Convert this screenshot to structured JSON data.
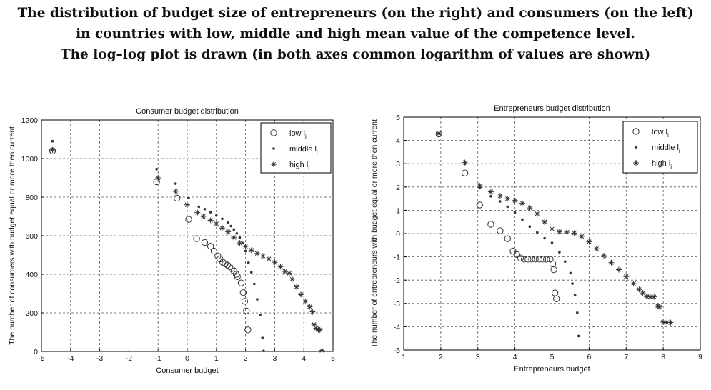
{
  "figure_title": [
    "The distribution of budget size of entrepreneurs (on the right) and consumers (on the left)",
    "in countries with low, middle and high mean value of the competence level.",
    "The log–log plot is drawn (in both axes common logarithm of values are shown)"
  ],
  "chart_data": [
    {
      "type": "scatter",
      "title": "Consumer budget distribution",
      "xlabel": "Consumer budget",
      "ylabel": "The number of consumers with budget equal or more then current",
      "xlim": [
        -5,
        5
      ],
      "ylim": [
        0,
        1200
      ],
      "xticks": [
        -5,
        -4,
        -3,
        -2,
        -1,
        0,
        1,
        2,
        3,
        4,
        5
      ],
      "yticks": [
        0,
        200,
        400,
        600,
        800,
        1000,
        1200
      ],
      "grid": true,
      "legend_position": "top-right",
      "series": [
        {
          "name": "low",
          "marker": "circle",
          "x": [
            -4.62,
            -1.05,
            -0.35,
            0.05,
            0.32,
            0.6,
            0.8,
            0.92,
            1.05,
            1.12,
            1.22,
            1.3,
            1.38,
            1.45,
            1.52,
            1.6,
            1.68,
            1.72,
            1.85,
            1.92,
            1.97,
            2.03,
            2.08
          ],
          "y": [
            1040,
            880,
            795,
            685,
            585,
            565,
            545,
            520,
            495,
            480,
            462,
            455,
            448,
            440,
            430,
            418,
            400,
            388,
            355,
            305,
            260,
            210,
            112
          ]
        },
        {
          "name": "middle",
          "marker": "dot",
          "x": [
            -4.62,
            -1.05,
            -0.4,
            0.05,
            0.4,
            0.6,
            0.8,
            1.0,
            1.2,
            1.4,
            1.5,
            1.6,
            1.7,
            1.8,
            1.9,
            2.0,
            2.1,
            2.2,
            2.3,
            2.4,
            2.5,
            2.58,
            2.62
          ],
          "y": [
            1090,
            945,
            870,
            795,
            750,
            738,
            722,
            705,
            688,
            668,
            650,
            632,
            612,
            590,
            562,
            520,
            460,
            410,
            350,
            270,
            190,
            70,
            3
          ]
        },
        {
          "name": "high",
          "marker": "star",
          "x": [
            -4.62,
            -1.0,
            -0.4,
            0.0,
            0.35,
            0.55,
            0.8,
            1.0,
            1.2,
            1.4,
            1.6,
            1.8,
            2.0,
            2.2,
            2.4,
            2.6,
            2.8,
            3.0,
            3.2,
            3.35,
            3.5,
            3.6,
            3.75,
            3.9,
            4.05,
            4.2,
            4.3,
            4.35,
            4.42,
            4.5,
            4.55,
            4.62
          ],
          "y": [
            1045,
            900,
            830,
            760,
            720,
            700,
            680,
            662,
            640,
            620,
            590,
            562,
            545,
            525,
            508,
            495,
            480,
            462,
            440,
            415,
            405,
            375,
            335,
            295,
            260,
            232,
            205,
            140,
            120,
            112,
            112,
            5
          ]
        }
      ]
    },
    {
      "type": "scatter",
      "title": "Entrepreneurs budget distribution",
      "xlabel": "Entrepreneurs budget",
      "ylabel": "The number of entrepreneurs with budget equal or more then current",
      "xlim": [
        1,
        9
      ],
      "ylim": [
        -5,
        5
      ],
      "xticks": [
        1,
        2,
        3,
        4,
        5,
        6,
        7,
        8,
        9
      ],
      "yticks": [
        -5,
        -4,
        -3,
        -2,
        -1,
        0,
        1,
        2,
        3,
        4,
        5
      ],
      "grid": true,
      "legend_position": "top-right",
      "series": [
        {
          "name": "low",
          "marker": "circle",
          "x": [
            1.95,
            2.65,
            3.05,
            3.35,
            3.6,
            3.8,
            3.95,
            4.05,
            4.15,
            4.25,
            4.35,
            4.45,
            4.55,
            4.65,
            4.75,
            4.85,
            4.95,
            5.02,
            5.05,
            5.08,
            5.12
          ],
          "y": [
            4.28,
            2.6,
            1.23,
            0.4,
            0.12,
            -0.22,
            -0.75,
            -0.9,
            -1.05,
            -1.1,
            -1.1,
            -1.1,
            -1.1,
            -1.1,
            -1.1,
            -1.1,
            -1.1,
            -1.3,
            -1.55,
            -2.55,
            -2.8
          ]
        },
        {
          "name": "middle",
          "marker": "dot",
          "x": [
            1.95,
            2.65,
            3.05,
            3.35,
            3.6,
            3.8,
            4.0,
            4.2,
            4.4,
            4.6,
            4.8,
            5.0,
            5.2,
            5.35,
            5.5,
            5.55,
            5.62,
            5.68,
            5.72
          ],
          "y": [
            4.3,
            3.0,
            1.95,
            1.6,
            1.38,
            1.15,
            0.9,
            0.6,
            0.3,
            0.05,
            -0.2,
            -0.4,
            -0.8,
            -1.2,
            -1.7,
            -2.15,
            -2.65,
            -3.4,
            -4.4
          ]
        },
        {
          "name": "high",
          "marker": "star",
          "x": [
            1.95,
            2.65,
            3.05,
            3.35,
            3.6,
            3.8,
            4.0,
            4.2,
            4.4,
            4.6,
            4.8,
            5.0,
            5.2,
            5.4,
            5.6,
            5.8,
            6.0,
            6.2,
            6.4,
            6.6,
            6.8,
            7.0,
            7.2,
            7.35,
            7.45,
            7.55,
            7.65,
            7.75,
            7.85,
            7.9,
            8.0,
            8.1,
            8.2
          ],
          "y": [
            4.3,
            3.05,
            2.05,
            1.8,
            1.62,
            1.5,
            1.42,
            1.3,
            1.1,
            0.85,
            0.5,
            0.2,
            0.08,
            0.06,
            0.02,
            -0.12,
            -0.35,
            -0.65,
            -0.95,
            -1.25,
            -1.55,
            -1.85,
            -2.15,
            -2.4,
            -2.55,
            -2.7,
            -2.72,
            -2.72,
            -3.1,
            -3.15,
            -3.8,
            -3.82,
            -3.82
          ]
        }
      ]
    }
  ],
  "legend_subscript": "i",
  "legend_letter": "l",
  "colors": {
    "marker": "#333333",
    "grid": "#555555",
    "axis": "#000000"
  }
}
